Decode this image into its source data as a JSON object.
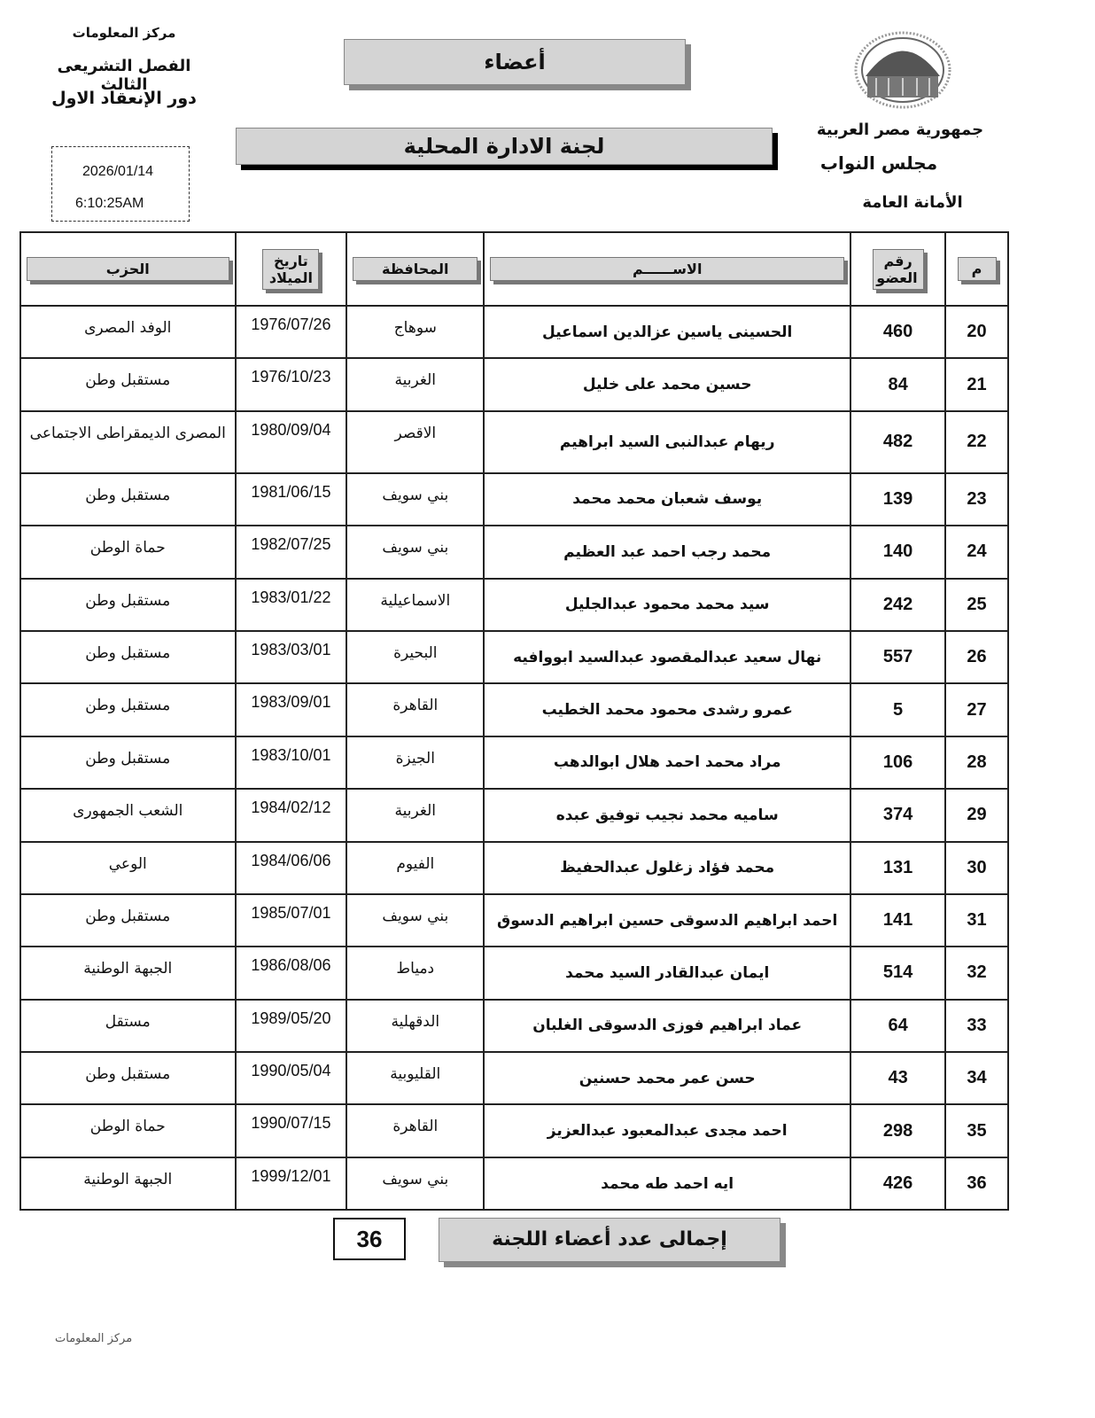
{
  "header": {
    "info_center": "مركز المعلومات",
    "term": "الفصل التشريعى الثالث",
    "session": "دور الإنعقاد الاول",
    "date": "2026/01/14",
    "time": "6:10:25AM",
    "title": "أعضاء",
    "committee": "لجنة الادارة المحلية",
    "country": "جمهورية مصر العربية",
    "council": "مجلس النواب",
    "secretariat": "الأمانة العامة"
  },
  "table": {
    "columns": {
      "m": "م",
      "member_no": "رقم العضو",
      "name": "الاســــــم",
      "governorate": "المحافظة",
      "birth": "تاريخ الميلاد",
      "party": "الحزب"
    },
    "rows": [
      {
        "m": "20",
        "no": "460",
        "name": "الحسينى ياسين عزالدين اسماعيل",
        "gov": "سوهاج",
        "birth": "1976/07/26",
        "party": "الوفد المصرى"
      },
      {
        "m": "21",
        "no": "84",
        "name": "حسين محمد على خليل",
        "gov": "الغربية",
        "birth": "1976/10/23",
        "party": "مستقبل وطن"
      },
      {
        "m": "22",
        "no": "482",
        "name": "ريهام عبدالنبى السيد ابراهيم",
        "gov": "الاقصر",
        "birth": "1980/09/04",
        "party": "المصرى الديمقراطى الاجتماعى"
      },
      {
        "m": "23",
        "no": "139",
        "name": "يوسف شعبان محمد محمد",
        "gov": "بني سويف",
        "birth": "1981/06/15",
        "party": "مستقبل وطن"
      },
      {
        "m": "24",
        "no": "140",
        "name": "محمد رجب احمد عبد العظيم",
        "gov": "بني سويف",
        "birth": "1982/07/25",
        "party": "حماة الوطن"
      },
      {
        "m": "25",
        "no": "242",
        "name": "سيد محمد محمود عبدالجليل",
        "gov": "الاسماعيلية",
        "birth": "1983/01/22",
        "party": "مستقبل وطن"
      },
      {
        "m": "26",
        "no": "557",
        "name": "نهال سعيد عبدالمقصود عبدالسيد ابووافيه",
        "gov": "البحيرة",
        "birth": "1983/03/01",
        "party": "مستقبل وطن"
      },
      {
        "m": "27",
        "no": "5",
        "name": "عمرو رشدى محمود محمد الخطيب",
        "gov": "القاهرة",
        "birth": "1983/09/01",
        "party": "مستقبل وطن"
      },
      {
        "m": "28",
        "no": "106",
        "name": "مراد محمد احمد هلال ابوالدهب",
        "gov": "الجيزة",
        "birth": "1983/10/01",
        "party": "مستقبل وطن"
      },
      {
        "m": "29",
        "no": "374",
        "name": "ساميه محمد نجيب توفيق عبده",
        "gov": "الغربية",
        "birth": "1984/02/12",
        "party": "الشعب الجمهورى"
      },
      {
        "m": "30",
        "no": "131",
        "name": "محمد فؤاد زغلول عبدالحفيظ",
        "gov": "الفيوم",
        "birth": "1984/06/06",
        "party": "الوعي"
      },
      {
        "m": "31",
        "no": "141",
        "name": "احمد ابراهيم الدسوقى حسين ابراهيم الدسوق",
        "gov": "بني سويف",
        "birth": "1985/07/01",
        "party": "مستقبل وطن"
      },
      {
        "m": "32",
        "no": "514",
        "name": "ايمان عبدالقادر السيد محمد",
        "gov": "دمياط",
        "birth": "1986/08/06",
        "party": "الجبهة الوطنية"
      },
      {
        "m": "33",
        "no": "64",
        "name": "عماد ابراهيم فوزى الدسوقى الغلبان",
        "gov": "الدقهلية",
        "birth": "1989/05/20",
        "party": "مستقل"
      },
      {
        "m": "34",
        "no": "43",
        "name": "حسن عمر محمد حسنين",
        "gov": "القليوبية",
        "birth": "1990/05/04",
        "party": "مستقبل وطن"
      },
      {
        "m": "35",
        "no": "298",
        "name": "احمد مجدى عبدالمعبود عبدالعزيز",
        "gov": "القاهرة",
        "birth": "1990/07/15",
        "party": "حماة الوطن"
      },
      {
        "m": "36",
        "no": "426",
        "name": "ايه احمد طه محمد",
        "gov": "بني سويف",
        "birth": "1999/12/01",
        "party": "الجبهة الوطنية"
      }
    ]
  },
  "footer": {
    "total_label": "إجمالى عدد أعضاء اللجنة",
    "total": "36",
    "info_center": "مركز المعلومات"
  }
}
